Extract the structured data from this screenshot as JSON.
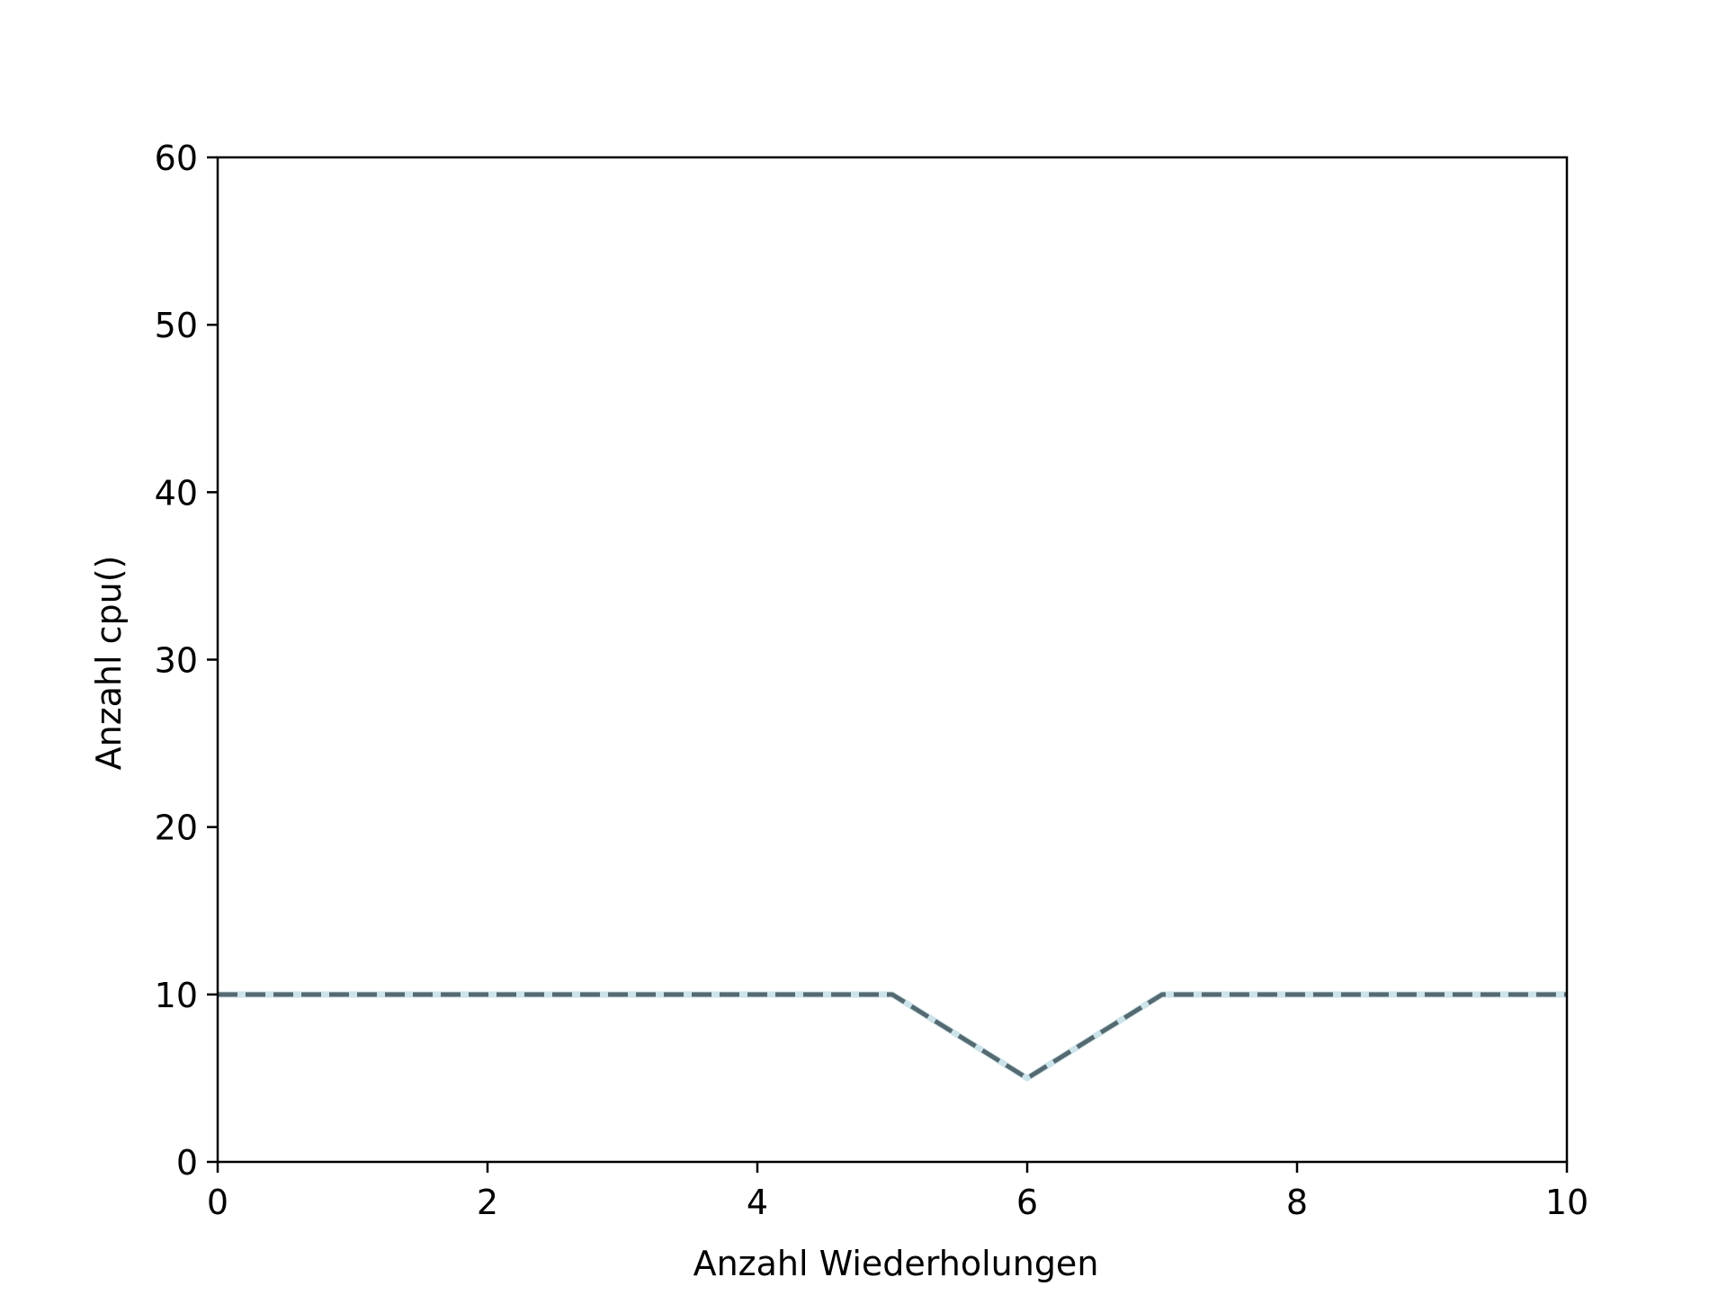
{
  "chart_data": {
    "type": "line",
    "title": "",
    "xlabel": "Anzahl Wiederholungen",
    "ylabel": "Anzahl cpu()",
    "xlim": [
      0,
      10
    ],
    "ylim": [
      0,
      60
    ],
    "x_ticks": [
      0,
      2,
      4,
      6,
      8,
      10
    ],
    "y_ticks": [
      0,
      10,
      20,
      30,
      40,
      50,
      60
    ],
    "grid": false,
    "legend": "none",
    "series": [
      {
        "x": [
          0,
          1,
          2,
          3,
          4,
          5,
          6,
          7,
          8,
          9,
          10
        ],
        "y": [
          10,
          10,
          10,
          10,
          10,
          10,
          5,
          10,
          10,
          10,
          10
        ],
        "line_style": "dashed",
        "color": "#546a70",
        "underlay_color": "#cde3ea"
      }
    ]
  }
}
